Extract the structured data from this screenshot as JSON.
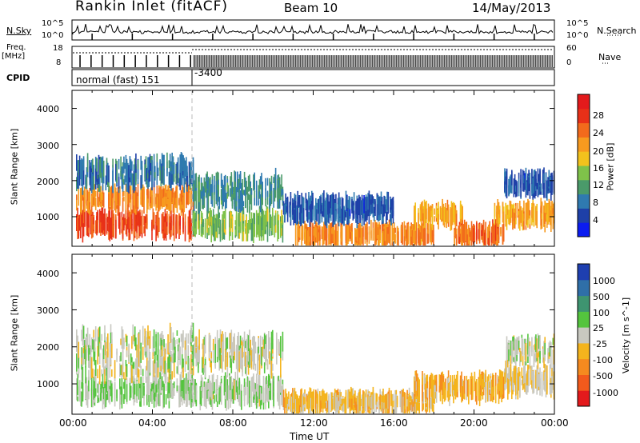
{
  "header": {
    "title": "Rankin Inlet (fitACF)",
    "beam": "Beam 10",
    "date": "14/May/2013"
  },
  "summary": {
    "nsky_label": "N.Sky",
    "nsky_hi": "10^5",
    "nsky_lo": "10^0",
    "nsearch_label": "N.Search",
    "nsearch_hi": "10^5",
    "nsearch_lo": "10^0",
    "freq_label": "Freq.",
    "freq_unit": "[MHz]",
    "freq_hi": "18",
    "freq_lo": "8",
    "nave_label": "Nave",
    "nave_hi": "60",
    "nave_lo": "0",
    "cpid_label": "CPID",
    "cpid_mode": "normal (fast) 151",
    "cpid_change": "-3400"
  },
  "axes": {
    "time_ticks": [
      "00:00",
      "04:00",
      "08:00",
      "12:00",
      "16:00",
      "20:00",
      "00:00"
    ],
    "range_ticks": [
      "1000",
      "2000",
      "3000",
      "4000"
    ],
    "xlabel": "Time UT",
    "ylabel": "Slant Range [km]"
  },
  "colorbars": {
    "power": {
      "label": "Power [dB]",
      "ticks": [
        "4",
        "8",
        "12",
        "16",
        "20",
        "24",
        "28"
      ],
      "colors": [
        "#0b1cf0",
        "#1e40a8",
        "#2f7ab0",
        "#4a9a6a",
        "#7fc24a",
        "#f2c21d",
        "#f79a1f",
        "#f26a1c",
        "#e83018",
        "#e31a1c"
      ]
    },
    "velocity": {
      "label": "Velocity [m s^-1]",
      "ticks": [
        "1000",
        "500",
        "100",
        "25",
        "-25",
        "-100",
        "-500",
        "-1000"
      ],
      "colors": [
        "#1e3fb0",
        "#2f6fa8",
        "#3e9470",
        "#54c43e",
        "#c8c8c0",
        "#f4b41d",
        "#f58a1f",
        "#f25a1c",
        "#e31a1c"
      ]
    }
  },
  "chart_data": [
    {
      "type": "heatmap",
      "panel": "power",
      "xlabel": "Time UT",
      "ylabel": "Slant Range [km]",
      "xlim": [
        "00:00",
        "24:00"
      ],
      "ylim": [
        180,
        4500
      ],
      "colorbar_label": "Power [dB]",
      "colorbar_range": [
        0,
        32
      ],
      "bands": [
        {
          "t_start": 0.2,
          "t_end": 6.0,
          "range_center": 800,
          "range_width": 450,
          "value": 26
        },
        {
          "t_start": 0.2,
          "t_end": 6.0,
          "range_center": 1500,
          "range_width": 350,
          "value": 22
        },
        {
          "t_start": 0.2,
          "t_end": 6.0,
          "range_center": 2200,
          "range_width": 600,
          "value": 8
        },
        {
          "t_start": 6.0,
          "t_end": 10.5,
          "range_center": 800,
          "range_width": 500,
          "value": 14
        },
        {
          "t_start": 6.0,
          "t_end": 10.5,
          "range_center": 1700,
          "range_width": 700,
          "value": 10
        },
        {
          "t_start": 11.0,
          "t_end": 18.0,
          "range_center": 500,
          "range_width": 260,
          "value": 22
        },
        {
          "t_start": 10.5,
          "t_end": 16.0,
          "range_center": 1200,
          "range_width": 500,
          "value": 6
        },
        {
          "t_start": 17.0,
          "t_end": 19.5,
          "range_center": 1050,
          "range_width": 300,
          "value": 20
        },
        {
          "t_start": 19.0,
          "t_end": 21.5,
          "range_center": 500,
          "range_width": 280,
          "value": 24
        },
        {
          "t_start": 21.0,
          "t_end": 24.0,
          "range_center": 1050,
          "range_width": 400,
          "value": 20
        },
        {
          "t_start": 21.5,
          "t_end": 24.0,
          "range_center": 1900,
          "range_width": 400,
          "value": 6
        }
      ]
    },
    {
      "type": "heatmap",
      "panel": "velocity",
      "xlabel": "Time UT",
      "ylabel": "Slant Range [km]",
      "xlim": [
        "00:00",
        "24:00"
      ],
      "ylim": [
        180,
        4500
      ],
      "colorbar_label": "Velocity [m s^-1]",
      "colorbar_range": [
        -1000,
        1000
      ],
      "bands": [
        {
          "t_start": 0.2,
          "t_end": 6.0,
          "range_center": 800,
          "range_width": 450,
          "value": 100
        },
        {
          "t_start": 0.2,
          "t_end": 6.0,
          "range_center": 1800,
          "range_width": 1200,
          "value": 0
        },
        {
          "t_start": 6.0,
          "t_end": 10.5,
          "range_center": 800,
          "range_width": 500,
          "value": 60
        },
        {
          "t_start": 6.0,
          "t_end": 10.5,
          "range_center": 1800,
          "range_width": 800,
          "value": 0
        },
        {
          "t_start": 10.5,
          "t_end": 18.0,
          "range_center": 500,
          "range_width": 260,
          "value": -200
        },
        {
          "t_start": 17.0,
          "t_end": 21.5,
          "range_center": 900,
          "range_width": 450,
          "value": -250
        },
        {
          "t_start": 21.5,
          "t_end": 24.0,
          "range_center": 1100,
          "range_width": 500,
          "value": -100
        },
        {
          "t_start": 21.5,
          "t_end": 24.0,
          "range_center": 1900,
          "range_width": 500,
          "value": 0
        }
      ]
    }
  ]
}
